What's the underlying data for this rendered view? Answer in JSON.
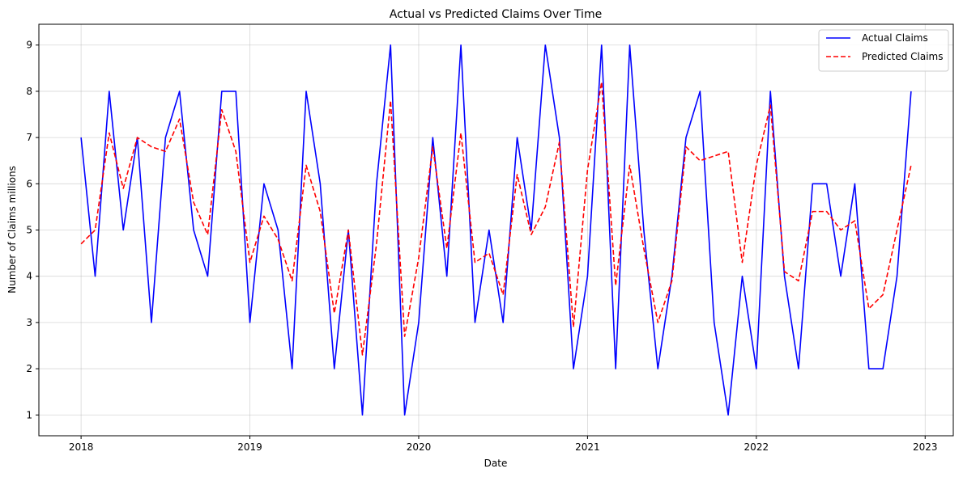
{
  "chart_data": {
    "type": "line",
    "title": "Actual vs Predicted Claims Over Time",
    "xlabel": "Date",
    "ylabel": "Number of Claims millions",
    "x_tick_labels": [
      "2018",
      "2019",
      "2020",
      "2021",
      "2022",
      "2023"
    ],
    "y_ticks": [
      1,
      2,
      3,
      4,
      5,
      6,
      7,
      8,
      9
    ],
    "xlim": [
      "2017-10",
      "2023-03"
    ],
    "ylim": [
      0.55,
      9.45
    ],
    "grid": true,
    "legend_position": "top-right",
    "x": [
      "2018-01",
      "2018-02",
      "2018-03",
      "2018-04",
      "2018-05",
      "2018-06",
      "2018-07",
      "2018-08",
      "2018-09",
      "2018-10",
      "2018-11",
      "2018-12",
      "2019-01",
      "2019-02",
      "2019-03",
      "2019-04",
      "2019-05",
      "2019-06",
      "2019-07",
      "2019-08",
      "2019-09",
      "2019-10",
      "2019-11",
      "2019-12",
      "2020-01",
      "2020-02",
      "2020-03",
      "2020-04",
      "2020-05",
      "2020-06",
      "2020-07",
      "2020-08",
      "2020-09",
      "2020-10",
      "2020-11",
      "2020-12",
      "2021-01",
      "2021-02",
      "2021-03",
      "2021-04",
      "2021-05",
      "2021-06",
      "2021-07",
      "2021-08",
      "2021-09",
      "2021-10",
      "2021-11",
      "2021-12",
      "2022-01",
      "2022-02",
      "2022-03",
      "2022-04",
      "2022-05",
      "2022-06",
      "2022-07",
      "2022-08",
      "2022-09",
      "2022-10",
      "2022-11",
      "2022-12"
    ],
    "series": [
      {
        "name": "Actual Claims",
        "color": "#0000ff",
        "style": "solid",
        "values": [
          7,
          4,
          8,
          5,
          7,
          3,
          7,
          8,
          5,
          4,
          8,
          8,
          3,
          6,
          5,
          2,
          8,
          6,
          2,
          5,
          1,
          6,
          9,
          1,
          3,
          7,
          4,
          9,
          3,
          5,
          3,
          7,
          5,
          9,
          7,
          2,
          4,
          9,
          2,
          9,
          5,
          2,
          4,
          7,
          8,
          3,
          1,
          4,
          2,
          8,
          4,
          2,
          6,
          6,
          4,
          6,
          2,
          2,
          4,
          8
        ]
      },
      {
        "name": "Predicted Claims",
        "color": "#ff0000",
        "style": "dashed",
        "values": [
          4.7,
          5.0,
          7.1,
          5.9,
          7.0,
          6.8,
          6.7,
          7.4,
          5.6,
          4.9,
          7.6,
          6.7,
          4.3,
          5.3,
          4.8,
          3.9,
          6.4,
          5.4,
          3.2,
          5.0,
          2.3,
          4.7,
          7.8,
          2.7,
          4.4,
          6.8,
          4.6,
          7.1,
          4.3,
          4.5,
          3.6,
          6.2,
          4.9,
          5.5,
          6.9,
          2.9,
          6.3,
          8.2,
          3.8,
          6.4,
          4.6,
          3.0,
          3.9,
          6.8,
          6.5,
          6.6,
          6.7,
          4.3,
          6.4,
          7.7,
          4.1,
          3.9,
          5.4,
          5.4,
          5.0,
          5.2,
          3.3,
          3.6,
          5.0,
          6.4
        ]
      }
    ]
  }
}
